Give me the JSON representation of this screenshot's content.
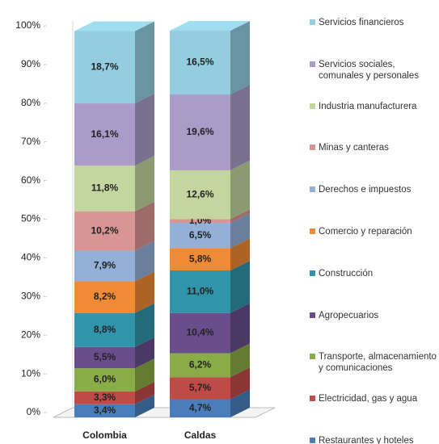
{
  "chart_data": {
    "type": "bar3d_stacked",
    "categories": [
      "Colombia",
      "Caldas"
    ],
    "ylim": [
      0,
      100
    ],
    "yticks": [
      {
        "value": 0,
        "label": "0%"
      },
      {
        "value": 10,
        "label": "10%"
      },
      {
        "value": 20,
        "label": "20%"
      },
      {
        "value": 30,
        "label": "30%"
      },
      {
        "value": 40,
        "label": "40%"
      },
      {
        "value": 50,
        "label": "50%"
      },
      {
        "value": 60,
        "label": "60%"
      },
      {
        "value": 70,
        "label": "70%"
      },
      {
        "value": 80,
        "label": "80%"
      },
      {
        "value": 90,
        "label": "90%"
      },
      {
        "value": 100,
        "label": "100%"
      }
    ],
    "legend": "right",
    "series": [
      {
        "name": "Restaurantes y hoteles",
        "color": "#4a7ebb",
        "values": [
          3.4,
          4.7
        ],
        "value_labels": [
          "3,4%",
          "4,7%"
        ]
      },
      {
        "name": "Electricidad, gas y agua",
        "color": "#be4b48",
        "values": [
          3.3,
          5.7
        ],
        "value_labels": [
          "3,3%",
          "5,7%"
        ]
      },
      {
        "name": "Transporte, almacenamiento y comunicaciones",
        "color": "#8aac46",
        "values": [
          6.0,
          6.2
        ],
        "value_labels": [
          "6,0%",
          "6,2%"
        ]
      },
      {
        "name": "Agropecuarios",
        "color": "#6a4e8c",
        "values": [
          5.5,
          10.4
        ],
        "value_labels": [
          "5,5%",
          "10,4%"
        ]
      },
      {
        "name": "Construcción",
        "color": "#3094ab",
        "values": [
          8.8,
          11.0
        ],
        "value_labels": [
          "8,8%",
          "11,0%"
        ]
      },
      {
        "name": "Comercio y reparación",
        "color": "#f08a34",
        "values": [
          8.2,
          5.8
        ],
        "value_labels": [
          "8,2%",
          "5,8%"
        ]
      },
      {
        "name": "Derechos e impuestos",
        "color": "#93b1d8",
        "values": [
          7.9,
          6.5
        ],
        "value_labels": [
          "7,9%",
          "6,5%"
        ]
      },
      {
        "name": "Minas y canteras",
        "color": "#d99593",
        "values": [
          10.2,
          1.0
        ],
        "value_labels": [
          "10,2%",
          "1,0%"
        ]
      },
      {
        "name": "Industria manufacturera",
        "color": "#c3d69e",
        "values": [
          11.8,
          12.6
        ],
        "value_labels": [
          "11,8%",
          "12,6%"
        ]
      },
      {
        "name": "Servicios sociales, comunales y personales",
        "color": "#aa9bc8",
        "values": [
          16.1,
          19.6
        ],
        "value_labels": [
          "16,1%",
          "19,6%"
        ]
      },
      {
        "name": "Servicios financieros",
        "color": "#93cddf",
        "values": [
          18.7,
          16.5
        ],
        "value_labels": [
          "18,7%",
          "16,5%"
        ]
      }
    ]
  }
}
